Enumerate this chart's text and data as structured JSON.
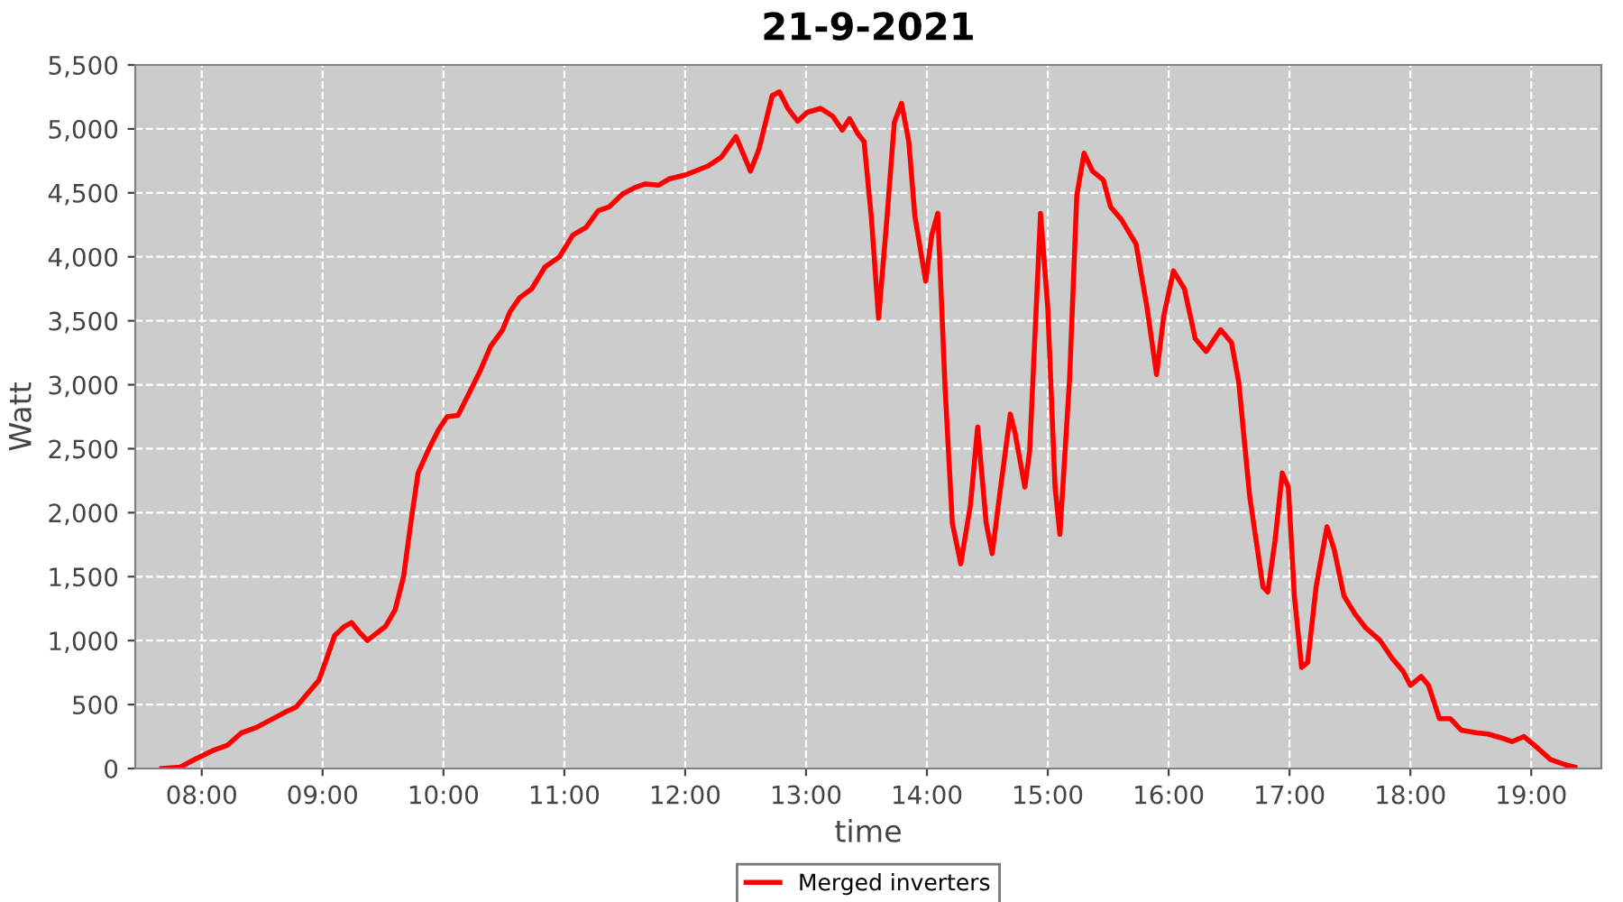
{
  "chart_data": {
    "type": "line",
    "title": "21-9-2021",
    "xlabel": "time",
    "ylabel": "Watt",
    "x": [
      7.67,
      7.82,
      7.94,
      8.09,
      8.21,
      8.33,
      8.45,
      8.57,
      8.69,
      8.78,
      8.87,
      8.97,
      9.03,
      9.1,
      9.18,
      9.24,
      9.31,
      9.37,
      9.45,
      9.52,
      9.6,
      9.67,
      9.73,
      9.79,
      9.88,
      9.96,
      10.03,
      10.12,
      10.21,
      10.3,
      10.39,
      10.49,
      10.55,
      10.63,
      10.73,
      10.84,
      10.96,
      11.07,
      11.18,
      11.28,
      11.37,
      11.48,
      11.58,
      11.67,
      11.78,
      11.87,
      12.0,
      12.19,
      12.3,
      12.42,
      12.54,
      12.61,
      12.72,
      12.78,
      12.85,
      12.93,
      13.01,
      13.12,
      13.22,
      13.3,
      13.36,
      13.43,
      13.48,
      13.54,
      13.6,
      13.67,
      13.73,
      13.79,
      13.85,
      13.9,
      13.99,
      14.04,
      14.09,
      14.15,
      14.21,
      14.28,
      14.36,
      14.42,
      14.49,
      14.54,
      14.61,
      14.69,
      14.73,
      14.81,
      14.85,
      14.94,
      15.0,
      15.06,
      15.1,
      15.18,
      15.24,
      15.3,
      15.37,
      15.46,
      15.52,
      15.61,
      15.73,
      15.82,
      15.9,
      15.96,
      16.04,
      16.13,
      16.22,
      16.31,
      16.43,
      16.52,
      16.58,
      16.67,
      16.78,
      16.82,
      16.88,
      16.94,
      16.99,
      17.04,
      17.1,
      17.15,
      17.22,
      17.31,
      17.37,
      17.45,
      17.54,
      17.63,
      17.75,
      17.85,
      17.94,
      18.0,
      18.09,
      18.15,
      18.24,
      18.33,
      18.42,
      18.54,
      18.64,
      18.75,
      18.84,
      18.94,
      19.04,
      19.16,
      19.28,
      19.36
    ],
    "series": [
      {
        "name": "Merged inverters",
        "color": "#ff0000",
        "values": [
          0,
          10,
          70,
          140,
          180,
          280,
          320,
          380,
          440,
          480,
          580,
          690,
          850,
          1040,
          1110,
          1140,
          1060,
          1000,
          1060,
          1110,
          1240,
          1500,
          1920,
          2310,
          2500,
          2650,
          2750,
          2760,
          2930,
          3100,
          3300,
          3430,
          3570,
          3680,
          3750,
          3920,
          4000,
          4170,
          4230,
          4360,
          4390,
          4490,
          4540,
          4570,
          4560,
          4610,
          4640,
          4710,
          4780,
          4940,
          4670,
          4840,
          5260,
          5290,
          5160,
          5060,
          5130,
          5160,
          5100,
          4990,
          5080,
          4960,
          4900,
          4310,
          3520,
          4310,
          5050,
          5200,
          4900,
          4320,
          3810,
          4170,
          4340,
          2980,
          1920,
          1600,
          2060,
          2670,
          1920,
          1680,
          2200,
          2770,
          2620,
          2200,
          2480,
          4340,
          3600,
          2200,
          1830,
          3040,
          4480,
          4810,
          4670,
          4600,
          4390,
          4290,
          4100,
          3610,
          3080,
          3540,
          3890,
          3750,
          3360,
          3260,
          3430,
          3330,
          3020,
          2130,
          1420,
          1380,
          1780,
          2310,
          2200,
          1350,
          790,
          830,
          1420,
          1890,
          1710,
          1350,
          1210,
          1100,
          1000,
          860,
          760,
          650,
          720,
          650,
          390,
          390,
          300,
          280,
          270,
          240,
          210,
          250,
          170,
          70,
          30,
          10
        ]
      }
    ],
    "xlim": [
      7.45,
      19.58
    ],
    "xticks": [
      {
        "value": 8,
        "label": "08:00"
      },
      {
        "value": 9,
        "label": "09:00"
      },
      {
        "value": 10,
        "label": "10:00"
      },
      {
        "value": 11,
        "label": "11:00"
      },
      {
        "value": 12,
        "label": "12:00"
      },
      {
        "value": 13,
        "label": "13:00"
      },
      {
        "value": 14,
        "label": "14:00"
      },
      {
        "value": 15,
        "label": "15:00"
      },
      {
        "value": 16,
        "label": "16:00"
      },
      {
        "value": 17,
        "label": "17:00"
      },
      {
        "value": 18,
        "label": "18:00"
      },
      {
        "value": 19,
        "label": "19:00"
      }
    ],
    "ylim": [
      0,
      5500
    ],
    "yticks": [
      {
        "value": 0,
        "label": "0"
      },
      {
        "value": 500,
        "label": "500"
      },
      {
        "value": 1000,
        "label": "1,000"
      },
      {
        "value": 1500,
        "label": "1,500"
      },
      {
        "value": 2000,
        "label": "2,000"
      },
      {
        "value": 2500,
        "label": "2,500"
      },
      {
        "value": 3000,
        "label": "3,000"
      },
      {
        "value": 3500,
        "label": "3,500"
      },
      {
        "value": 4000,
        "label": "4,000"
      },
      {
        "value": 4500,
        "label": "4,500"
      },
      {
        "value": 5000,
        "label": "5,000"
      },
      {
        "value": 5500,
        "label": "5,500"
      }
    ],
    "grid": true,
    "legend": "bottom",
    "marker": "none",
    "line_style": "solid"
  }
}
